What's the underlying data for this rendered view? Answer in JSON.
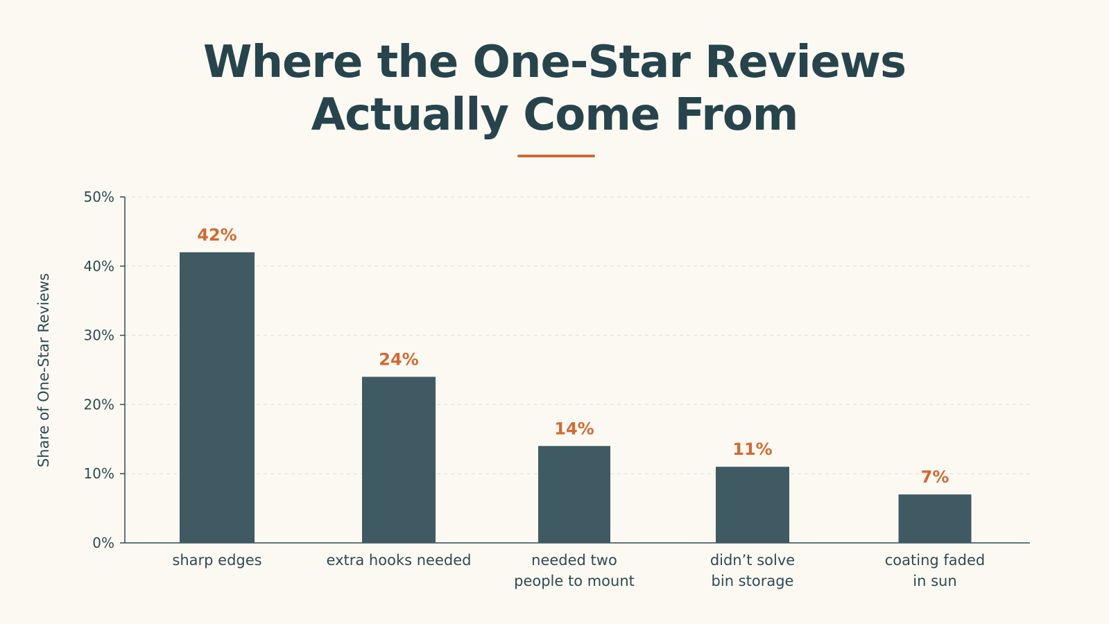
{
  "chart_data": {
    "type": "bar",
    "title": "Where the One-Star Reviews Actually Come From",
    "title_lines": [
      "Where the One-Star Reviews",
      "Actually Come From"
    ],
    "ylabel": "Share of One-Star Reviews",
    "xlabel": "",
    "categories": [
      [
        "sharp edges"
      ],
      [
        "extra hooks needed"
      ],
      [
        "needed two",
        "people to mount"
      ],
      [
        "didn’t solve",
        "bin storage"
      ],
      [
        "coating faded",
        "in sun"
      ]
    ],
    "values": [
      42,
      24,
      14,
      11,
      7
    ],
    "value_labels": [
      "42%",
      "24%",
      "14%",
      "11%",
      "7%"
    ],
    "ylim": [
      0,
      50
    ],
    "yticks": [
      0,
      10,
      20,
      30,
      40,
      50
    ],
    "ytick_labels": [
      "0%",
      "10%",
      "20%",
      "30%",
      "40%",
      "50%"
    ],
    "grid": true,
    "legend": "none",
    "colors": {
      "bar": "#3f5a63",
      "value_label": "#d06a33",
      "title": "#27444c",
      "accent_rule": "#d06a33",
      "axis": "#2d4a52",
      "grid": "#e3ddd2"
    }
  }
}
